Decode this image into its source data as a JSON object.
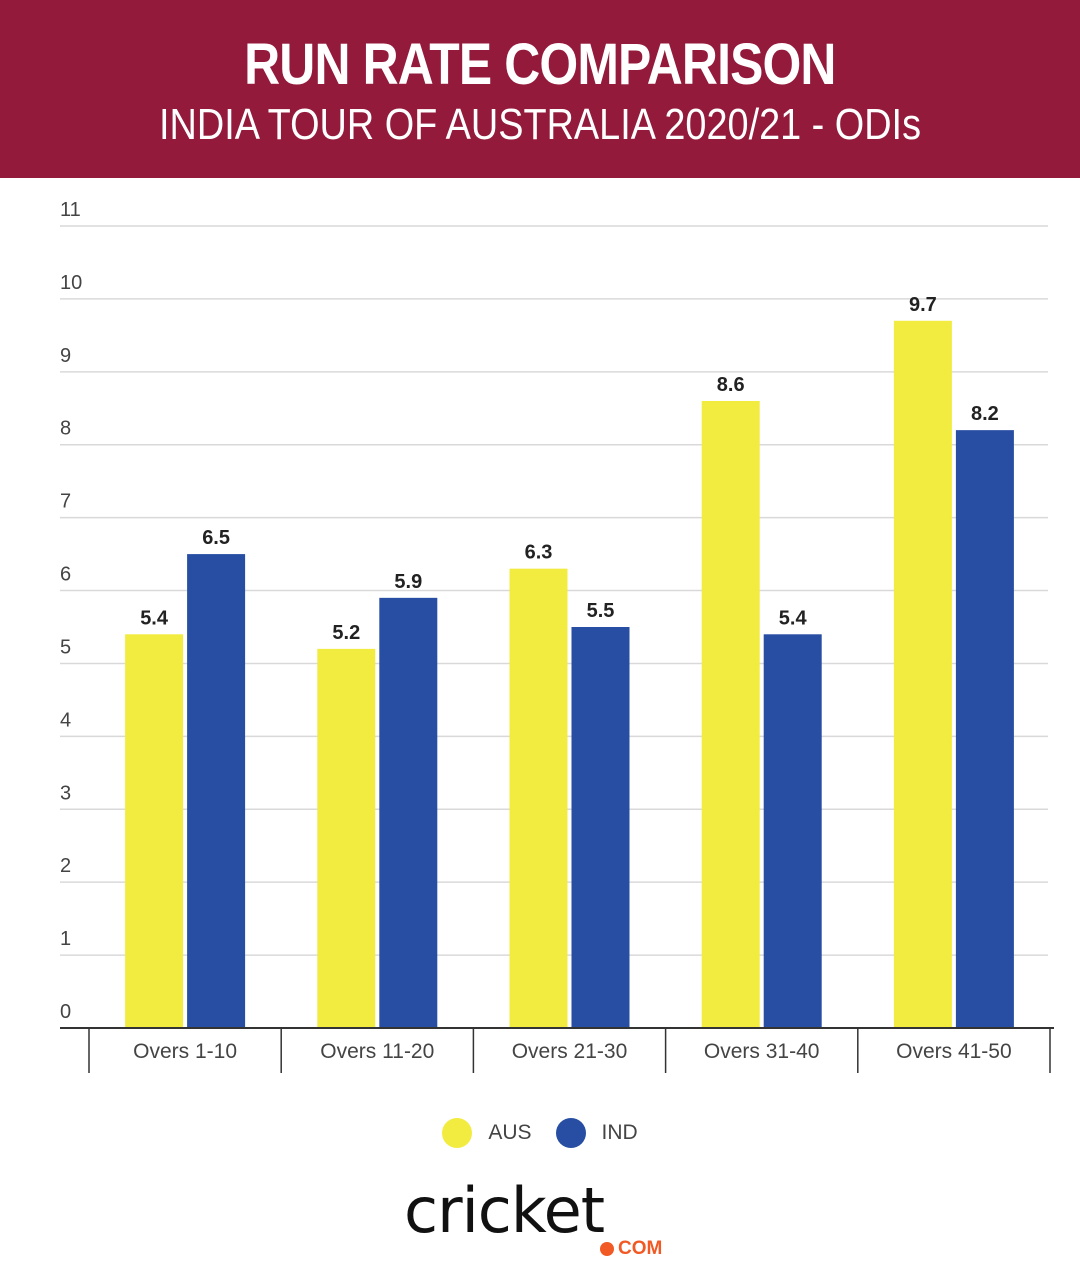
{
  "header": {
    "title": "RUN RATE COMPARISON",
    "subtitle": "INDIA TOUR OF AUSTRALIA 2020/21 - ODIs"
  },
  "colors": {
    "header_bg": "#941a3b",
    "aus": "#f2ec40",
    "ind": "#274ea3",
    "logo_accent": "#f15a24"
  },
  "chart_data": {
    "type": "bar",
    "categories": [
      "Overs 1-10",
      "Overs 11-20",
      "Overs 21-30",
      "Overs 31-40",
      "Overs 41-50"
    ],
    "series": [
      {
        "name": "AUS",
        "values": [
          5.4,
          5.2,
          6.3,
          8.6,
          9.7
        ]
      },
      {
        "name": "IND",
        "values": [
          6.5,
          5.9,
          5.5,
          5.4,
          8.2
        ]
      }
    ],
    "yticks": [
      0,
      1,
      2,
      3,
      4,
      5,
      6,
      7,
      8,
      9,
      10,
      11
    ],
    "ylim": [
      0,
      11
    ],
    "grid": true,
    "data_labels": true,
    "legend_position": "bottom"
  },
  "legend": {
    "items": [
      {
        "label": "AUS"
      },
      {
        "label": "IND"
      }
    ]
  },
  "logo": {
    "word": "cricket",
    "suffix": "COM"
  }
}
